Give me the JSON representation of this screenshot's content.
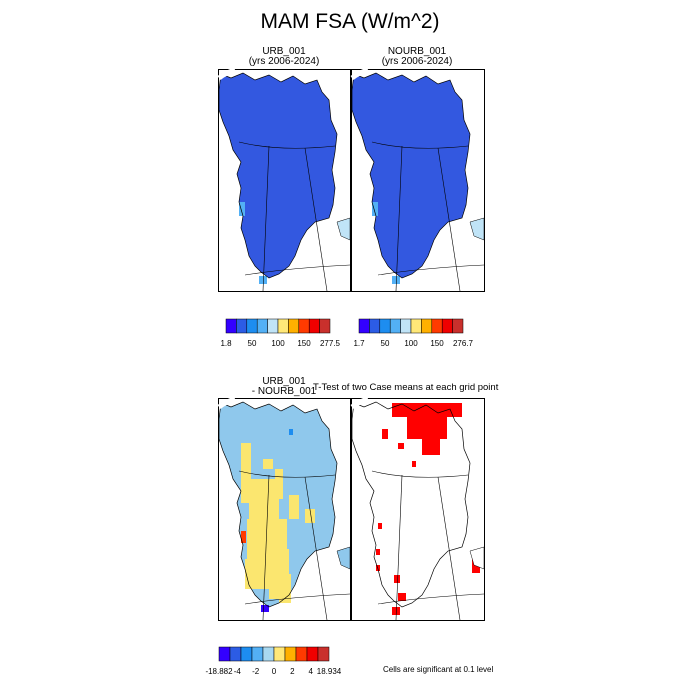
{
  "figure": {
    "title": "MAM FSA (W/m^2)",
    "panels": [
      {
        "id": "urb",
        "title_line1": "URB_001",
        "title_line2": "(yrs 2006-2024)"
      },
      {
        "id": "nourb",
        "title_line1": "NOURB_001",
        "title_line2": "(yrs 2006-2024)"
      },
      {
        "id": "diff",
        "title_line1": "URB_001",
        "title_line2": "- NOURB_001"
      },
      {
        "id": "ttest",
        "title_line1": "T-Test of two Case means at each grid point",
        "title_line2": ""
      }
    ],
    "significance_note": "Cells are significant at 0.1 level"
  },
  "chart_data": [
    {
      "type": "heatmap",
      "title": "URB_001 (yrs 2006-2024)",
      "colorbar": {
        "colors": [
          "#3300ff",
          "#2c5ce5",
          "#1d8df0",
          "#53b0f5",
          "#c0e4f7",
          "#ffe878",
          "#ffb000",
          "#ff3a00",
          "#f00000",
          "#c9302c"
        ],
        "tick_labels": [
          "1.8",
          "50",
          "100",
          "150",
          "277.5"
        ]
      },
      "dominant_color": "#3358e0"
    },
    {
      "type": "heatmap",
      "title": "NOURB_001 (yrs 2006-2024)",
      "colorbar": {
        "colors": [
          "#3300ff",
          "#2c5ce5",
          "#1d8df0",
          "#53b0f5",
          "#c0e4f7",
          "#ffe878",
          "#ffb000",
          "#ff3a00",
          "#f00000",
          "#c9302c"
        ],
        "tick_labels": [
          "1.7",
          "50",
          "100",
          "150",
          "276.7"
        ]
      },
      "dominant_color": "#3358e0"
    },
    {
      "type": "heatmap",
      "title": "URB_001 - NOURB_001",
      "colorbar": {
        "colors": [
          "#3300ff",
          "#2c5ce5",
          "#1d8df0",
          "#53b0f5",
          "#a8d8f0",
          "#ffe878",
          "#ffb000",
          "#ff3a00",
          "#f00000",
          "#c9302c"
        ],
        "tick_labels": [
          "-18.882",
          "-4",
          "-2",
          "0",
          "2",
          "4",
          "18.934"
        ]
      }
    },
    {
      "type": "heatmap",
      "title": "T-Test of two Case means at each grid point",
      "significant_color": "#ff0000"
    }
  ]
}
